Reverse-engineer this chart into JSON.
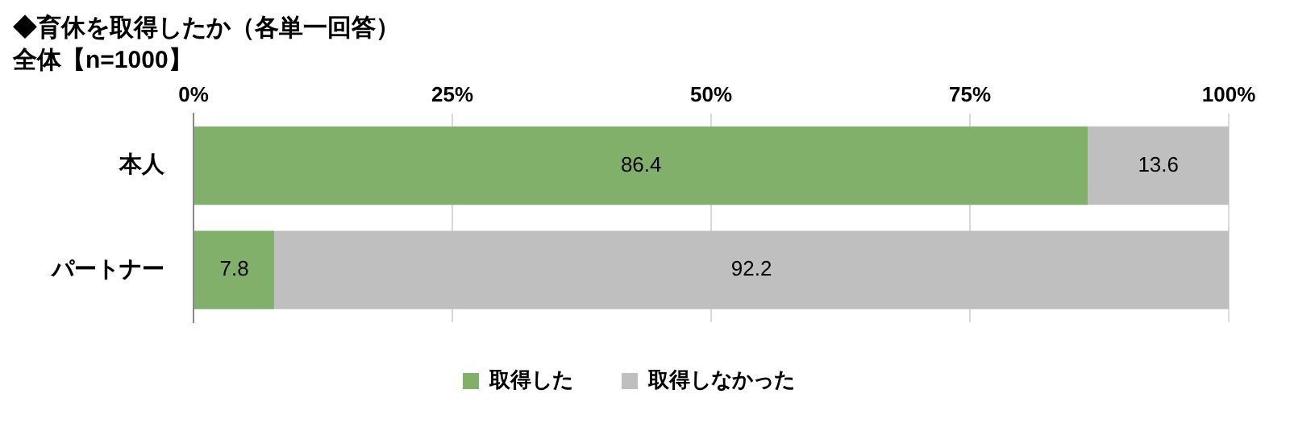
{
  "chart_data": {
    "type": "bar",
    "orientation": "horizontal",
    "stacked": true,
    "title": "◆育休を取得したか（各単一回答）",
    "subtitle": "全体【n=1000】",
    "categories": [
      "本人",
      "パートナー"
    ],
    "series": [
      {
        "name": "取得した",
        "color": "#80b06a",
        "values": [
          86.4,
          7.8
        ]
      },
      {
        "name": "取得しなかった",
        "color": "#bfbfbf",
        "values": [
          13.6,
          92.2
        ]
      }
    ],
    "xlim": [
      0,
      100
    ],
    "xticks": [
      {
        "value": 0,
        "label": "0%"
      },
      {
        "value": 25,
        "label": "25%"
      },
      {
        "value": 50,
        "label": "50%"
      },
      {
        "value": 75,
        "label": "75%"
      },
      {
        "value": 100,
        "label": "100%"
      }
    ],
    "grid": "x",
    "legend": "bottom",
    "data_labels": true
  }
}
